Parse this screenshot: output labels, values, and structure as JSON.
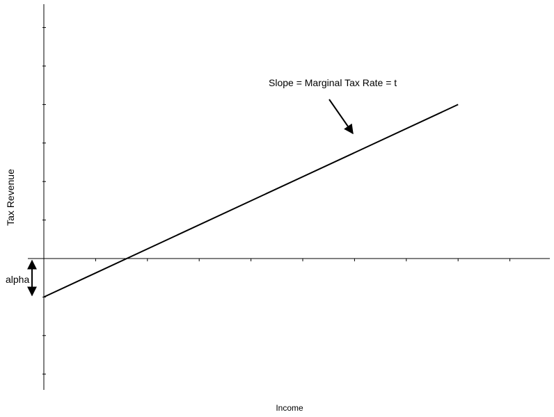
{
  "chart_data": {
    "type": "line",
    "title": "",
    "xlabel": "Income",
    "ylabel": "Tax Revenue",
    "xlim": [
      0,
      9.8
    ],
    "ylim": [
      -3.4,
      6.6
    ],
    "grid": false,
    "tick_labels_shown": false,
    "x_ticks": [
      1,
      2,
      3,
      4,
      5,
      6,
      7,
      8,
      9
    ],
    "y_ticks": [
      -3,
      -2,
      -1,
      1,
      2,
      3,
      4,
      5,
      6
    ],
    "series": [
      {
        "values": [
          {
            "x": 0,
            "y": -1
          },
          {
            "x": 8,
            "y": 4
          }
        ],
        "color": "#000000"
      }
    ],
    "annotations": {
      "slope_label": "Slope = Marginal Tax Rate = t",
      "intercept_label": "alpha"
    }
  }
}
